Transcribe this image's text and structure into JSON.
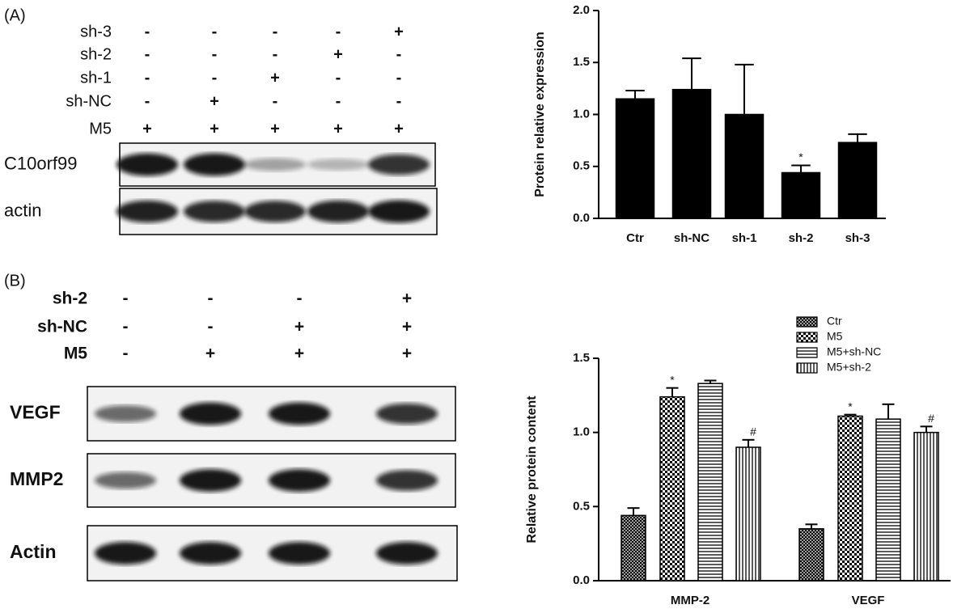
{
  "blots": [
    {
      "label": "(A)",
      "conditions": [
        {
          "name": "sh-3",
          "signs": [
            "-",
            "-",
            "-",
            "-",
            "+"
          ]
        },
        {
          "name": "sh-2",
          "signs": [
            "-",
            "-",
            "-",
            "+",
            "-"
          ]
        },
        {
          "name": "sh-1",
          "signs": [
            "-",
            "-",
            "+",
            "-",
            "-"
          ]
        },
        {
          "name": "sh-NC",
          "signs": [
            "-",
            "+",
            "-",
            "-",
            "-"
          ]
        },
        {
          "name": "M5",
          "signs": [
            "+",
            "+",
            "+",
            "+",
            "+"
          ]
        }
      ],
      "rows": [
        "C10orf99",
        "actin"
      ]
    },
    {
      "label": "(B)",
      "conditions": [
        {
          "name": "sh-2",
          "signs": [
            "-",
            "-",
            "-",
            "+"
          ]
        },
        {
          "name": "sh-NC",
          "signs": [
            "-",
            "-",
            "+",
            "+"
          ]
        },
        {
          "name": "M5",
          "signs": [
            "-",
            "+",
            "+",
            "+"
          ]
        }
      ],
      "rows": [
        "VEGF",
        "MMP2",
        "Actin"
      ]
    }
  ],
  "chart_data": [
    {
      "type": "bar",
      "ylabel": "Protein  relative expression",
      "categories": [
        "Ctr",
        "sh-NC",
        "sh-1",
        "sh-2",
        "sh-3"
      ],
      "values": [
        1.15,
        1.24,
        1.0,
        0.44,
        0.73
      ],
      "errors": [
        0.08,
        0.3,
        0.48,
        0.07,
        0.08
      ],
      "annotations": [
        null,
        null,
        null,
        "*",
        null
      ],
      "color": "#000000",
      "ylim": [
        0,
        2
      ],
      "yticks": [
        {
          "value": 0,
          "label": "0.0"
        },
        {
          "value": 0.5,
          "label": "0.5"
        },
        {
          "value": 1,
          "label": "1.0"
        },
        {
          "value": 1.5,
          "label": "1.5"
        },
        {
          "value": 2,
          "label": "2.0"
        }
      ]
    },
    {
      "type": "grouped-bar",
      "ylabel": "Relative protein content",
      "categories": [
        "MMP-2",
        "VEGF"
      ],
      "series": [
        {
          "name": "Ctr",
          "pattern": "crosshatch",
          "values": [
            0.44,
            0.35
          ],
          "errors": [
            0.05,
            0.03
          ],
          "annotations": [
            null,
            null
          ]
        },
        {
          "name": "M5",
          "pattern": "checker",
          "values": [
            1.24,
            1.11
          ],
          "errors": [
            0.06,
            0.01
          ],
          "annotations": [
            "*",
            "*"
          ]
        },
        {
          "name": "M5+sh-NC",
          "pattern": "hlines",
          "values": [
            1.33,
            1.09
          ],
          "errors": [
            0.02,
            0.1
          ],
          "annotations": [
            null,
            null
          ]
        },
        {
          "name": "M5+sh-2",
          "pattern": "vlines",
          "values": [
            0.9,
            1.0
          ],
          "errors": [
            0.05,
            0.04
          ],
          "annotations": [
            "#",
            "#"
          ]
        }
      ],
      "ylim": [
        0,
        1.5
      ],
      "yticks": [
        {
          "value": 0,
          "label": "0.0"
        },
        {
          "value": 0.5,
          "label": "0.5"
        },
        {
          "value": 1,
          "label": "1.0"
        },
        {
          "value": 1.5,
          "label": "1.5"
        }
      ]
    }
  ]
}
